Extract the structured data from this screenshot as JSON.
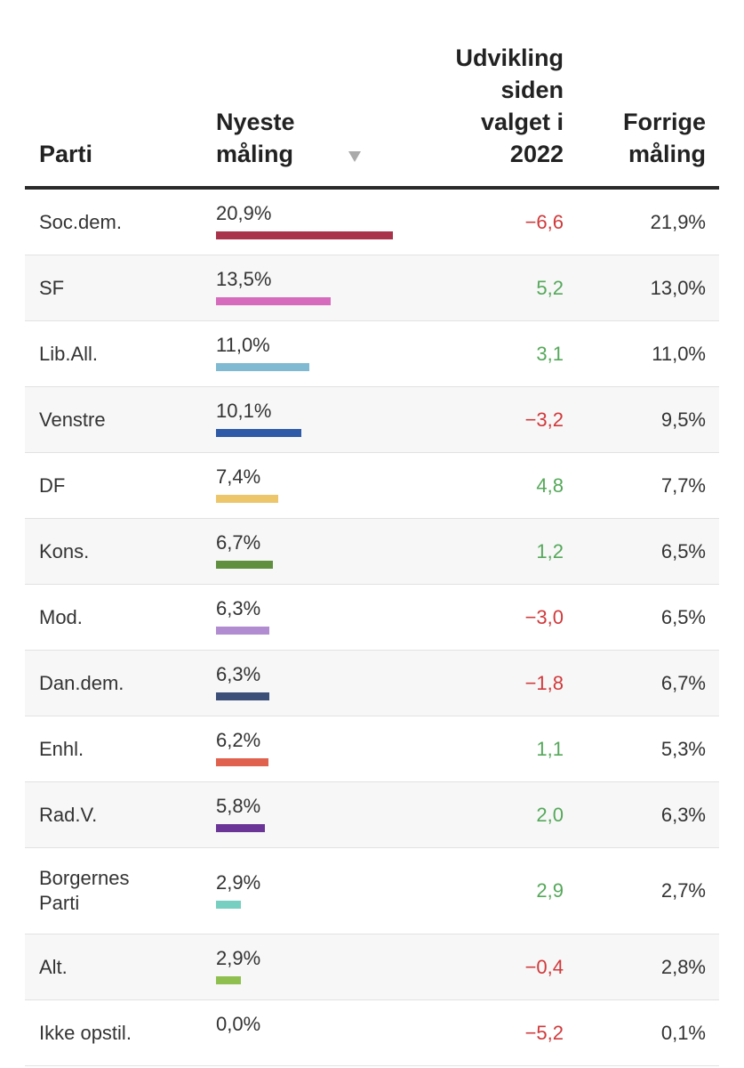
{
  "table": {
    "headers": [
      "Parti",
      "Nyeste måling",
      "Udvikling siden valget i 2022",
      "Forrige måling"
    ],
    "rows": [
      {
        "party": "Soc.dem.",
        "latest": {
          "value": 20.9,
          "label": "20,9%"
        },
        "change": {
          "value": -6.6,
          "label": "−6,6"
        },
        "previous": "21,9%",
        "color": "#a8334a"
      },
      {
        "party": "SF",
        "latest": {
          "value": 13.5,
          "label": "13,5%"
        },
        "change": {
          "value": 5.2,
          "label": "5,2"
        },
        "previous": "13,0%",
        "color": "#d66bbd"
      },
      {
        "party": "Lib.All.",
        "latest": {
          "value": 11.0,
          "label": "11,0%"
        },
        "change": {
          "value": 3.1,
          "label": "3,1"
        },
        "previous": "11,0%",
        "color": "#7fbad2"
      },
      {
        "party": "Venstre",
        "latest": {
          "value": 10.1,
          "label": "10,1%"
        },
        "change": {
          "value": -3.2,
          "label": "−3,2"
        },
        "previous": "9,5%",
        "color": "#2e5aa8"
      },
      {
        "party": "DF",
        "latest": {
          "value": 7.4,
          "label": "7,4%"
        },
        "change": {
          "value": 4.8,
          "label": "4,8"
        },
        "previous": "7,7%",
        "color": "#edc66b"
      },
      {
        "party": "Kons.",
        "latest": {
          "value": 6.7,
          "label": "6,7%"
        },
        "change": {
          "value": 1.2,
          "label": "1,2"
        },
        "previous": "6,5%",
        "color": "#5f8f3f"
      },
      {
        "party": "Mod.",
        "latest": {
          "value": 6.3,
          "label": "6,3%"
        },
        "change": {
          "value": -3.0,
          "label": "−3,0"
        },
        "previous": "6,5%",
        "color": "#b28cd0"
      },
      {
        "party": "Dan.dem.",
        "latest": {
          "value": 6.3,
          "label": "6,3%"
        },
        "change": {
          "value": -1.8,
          "label": "−1,8"
        },
        "previous": "6,7%",
        "color": "#3c4f79"
      },
      {
        "party": "Enhl.",
        "latest": {
          "value": 6.2,
          "label": "6,2%"
        },
        "change": {
          "value": 1.1,
          "label": "1,1"
        },
        "previous": "5,3%",
        "color": "#e0614e"
      },
      {
        "party": "Rad.V.",
        "latest": {
          "value": 5.8,
          "label": "5,8%"
        },
        "change": {
          "value": 2.0,
          "label": "2,0"
        },
        "previous": "6,3%",
        "color": "#6a3596"
      },
      {
        "party": "Borgernes Parti",
        "latest": {
          "value": 2.9,
          "label": "2,9%"
        },
        "change": {
          "value": 2.9,
          "label": "2,9"
        },
        "previous": "2,7%",
        "color": "#76cfc0"
      },
      {
        "party": "Alt.",
        "latest": {
          "value": 2.9,
          "label": "2,9%"
        },
        "change": {
          "value": -0.4,
          "label": "−0,4"
        },
        "previous": "2,8%",
        "color": "#8fbf4e"
      },
      {
        "party": "Ikke opstil.",
        "latest": {
          "value": 0.0,
          "label": "0,0%"
        },
        "change": {
          "value": -5.2,
          "label": "−5,2"
        },
        "previous": "0,1%"
      }
    ]
  }
}
